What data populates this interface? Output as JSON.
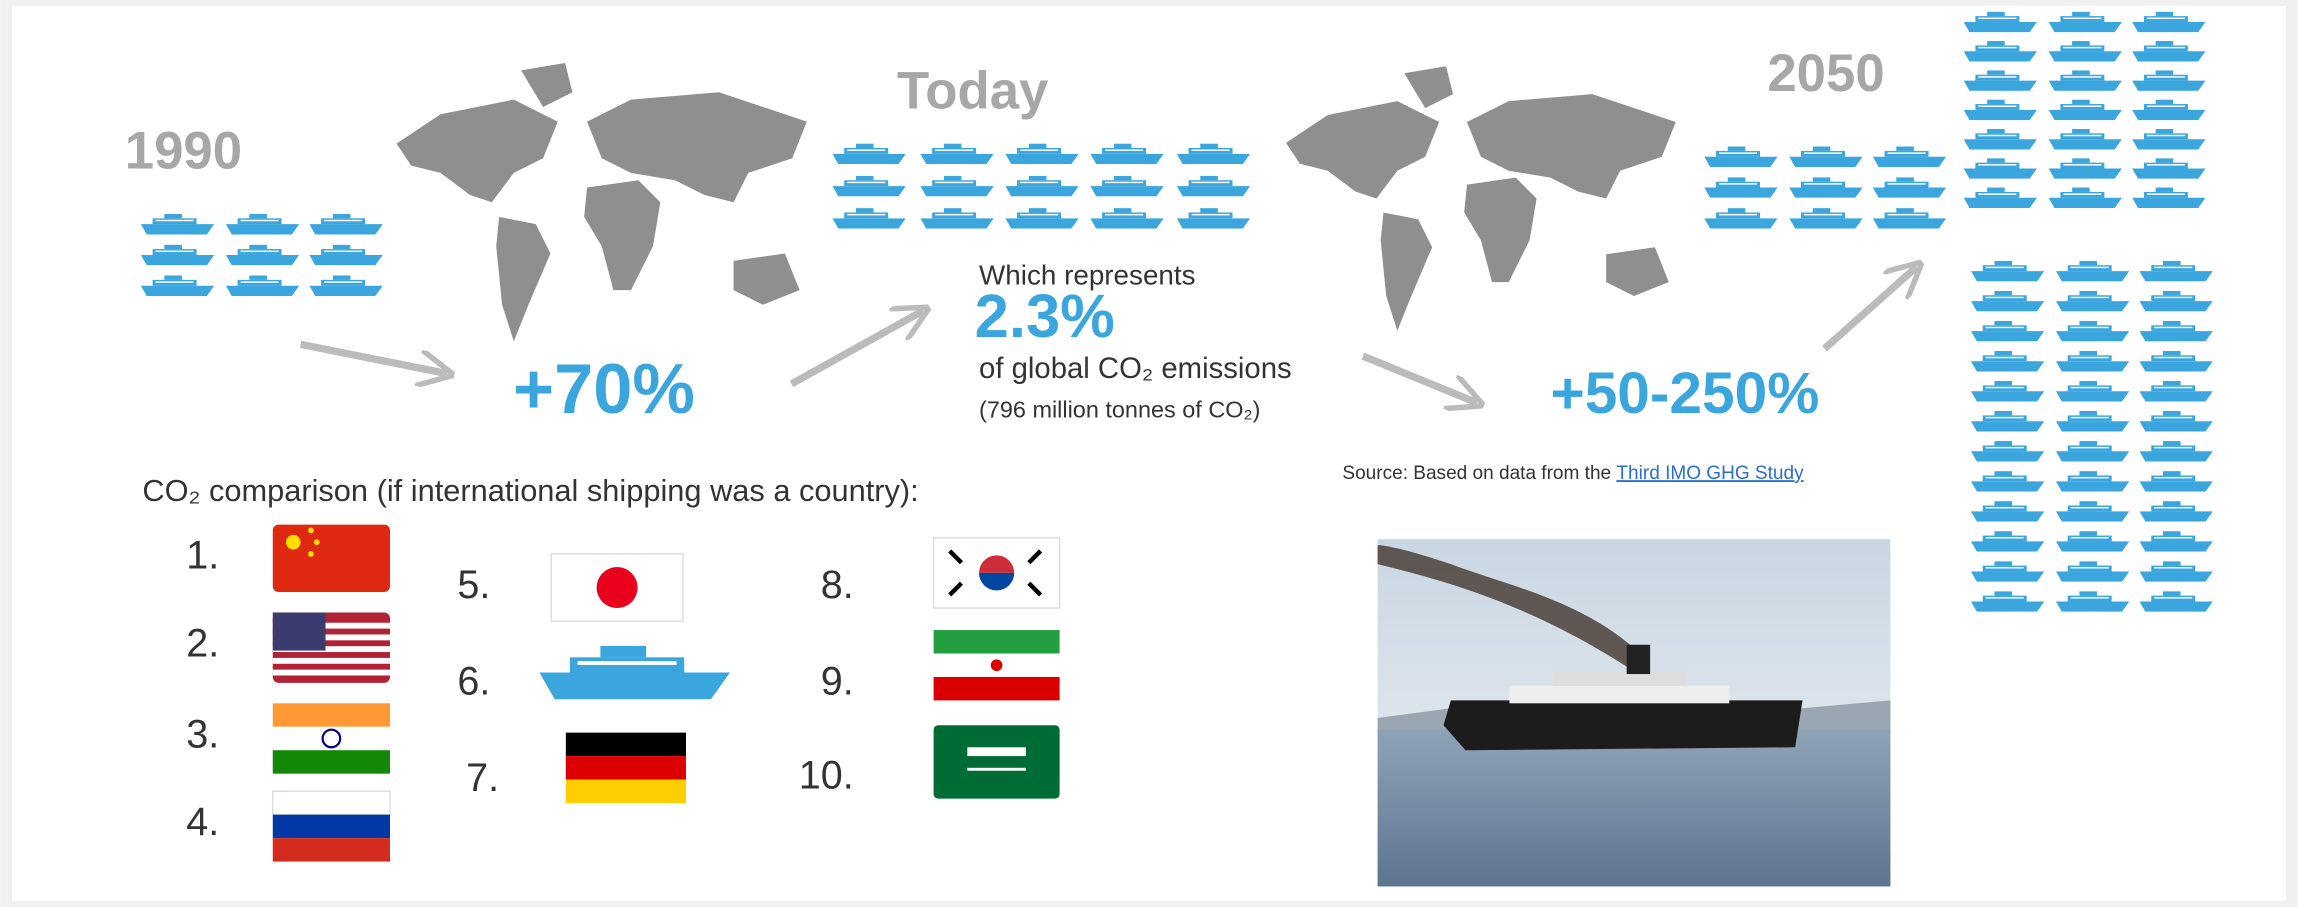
{
  "years": {
    "start": "1990",
    "today": "Today",
    "future": "2050"
  },
  "growth": {
    "past": "+70%",
    "future": "+50-250%"
  },
  "share": {
    "intro": "Which represents",
    "value": "2.3%",
    "text": "of global CO₂ emissions",
    "detail": "(796 million tonnes of CO₂)"
  },
  "source": {
    "text": "Source: Based on data from the ",
    "link": "Third IMO GHG Study"
  },
  "comparison": {
    "title": "CO₂ comparison (if international shipping was a country):",
    "ranks": [
      "1.",
      "2.",
      "3.",
      "4.",
      "5.",
      "6.",
      "7.",
      "8.",
      "9.",
      "10."
    ]
  }
}
